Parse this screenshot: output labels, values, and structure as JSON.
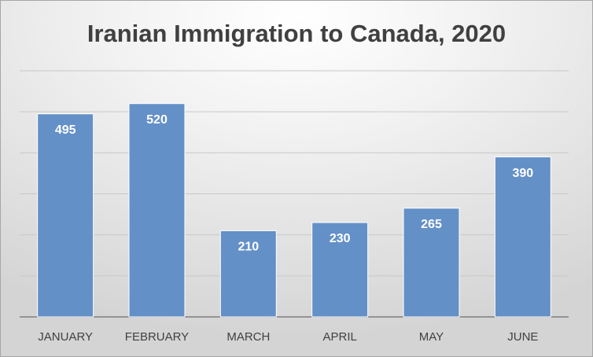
{
  "chart_data": {
    "type": "bar",
    "title": "Iranian Immigration to Canada, 2020",
    "categories": [
      "JANUARY",
      "FEBRUARY",
      "MARCH",
      "APRIL",
      "MAY",
      "JUNE"
    ],
    "values": [
      495,
      520,
      210,
      230,
      265,
      390
    ],
    "color": "#6490c8",
    "ylim": [
      0,
      600
    ],
    "yticks": [
      0,
      100,
      200,
      300,
      400,
      500,
      600
    ],
    "grid": true
  }
}
